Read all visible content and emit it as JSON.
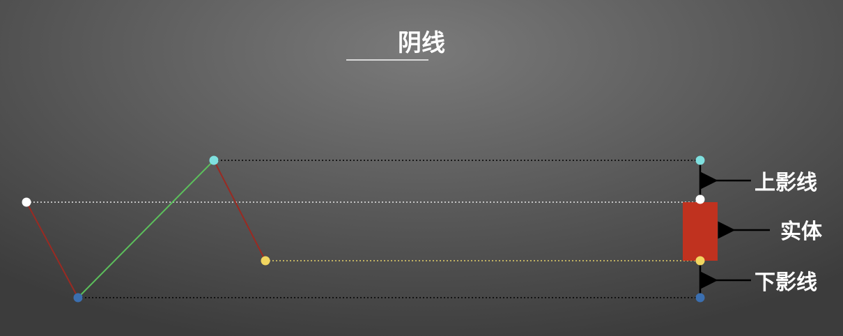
{
  "title": "阴线",
  "labels": {
    "upper_shadow": "上影线",
    "body": "实体",
    "lower_shadow": "下影线"
  },
  "colors": {
    "open_point": "#ffffff",
    "high_point": "#7fe0df",
    "close_point": "#f2d660",
    "low_point": "#3b6fb0",
    "candle_body": "#c0321f",
    "down_segment": "#9a2a22",
    "up_segment": "#5cc05c"
  }
}
